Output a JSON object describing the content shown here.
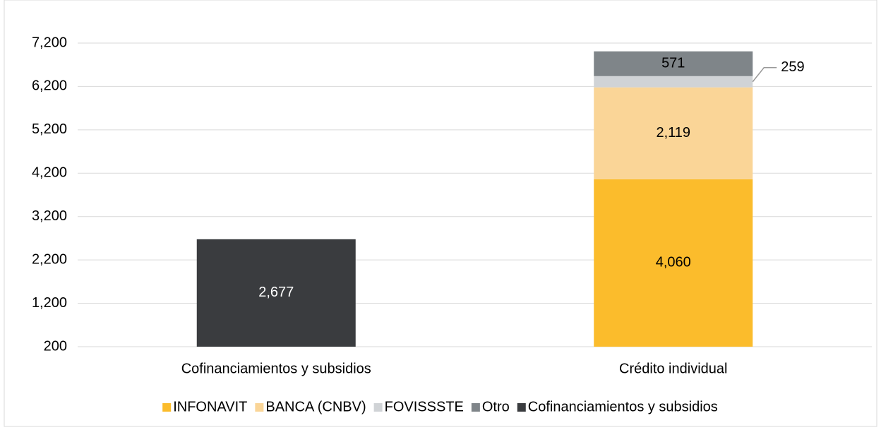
{
  "chart_data": {
    "type": "stacked_bar",
    "categories": [
      "Cofinanciamientos y subsidios",
      "Crédito individual"
    ],
    "series": [
      {
        "name": "INFONAVIT",
        "color": "#fbbc2c",
        "values": [
          null,
          4060
        ],
        "value_labels": [
          null,
          "4,060"
        ]
      },
      {
        "name": "BANCA (CNBV)",
        "color": "#fad597",
        "values": [
          null,
          2119
        ],
        "value_labels": [
          null,
          "2,119"
        ]
      },
      {
        "name": "FOVISSSTE",
        "color": "#d0d3d6",
        "values": [
          null,
          259
        ],
        "value_labels": [
          null,
          "259"
        ]
      },
      {
        "name": "Otro",
        "color": "#7f8589",
        "values": [
          null,
          571
        ],
        "value_labels": [
          null,
          "571"
        ]
      },
      {
        "name": "Cofinanciamientos y subsidios",
        "color": "#3a3c3f",
        "values": [
          2677,
          null
        ],
        "value_labels": [
          "2,677",
          null
        ]
      }
    ],
    "ylim": [
      200,
      7200
    ],
    "yticks": [
      {
        "value": 200,
        "label": "200"
      },
      {
        "value": 1200,
        "label": "1,200"
      },
      {
        "value": 2200,
        "label": "2,200"
      },
      {
        "value": 3200,
        "label": "3,200"
      },
      {
        "value": 4200,
        "label": "4,200"
      },
      {
        "value": 5200,
        "label": "5,200"
      },
      {
        "value": 6200,
        "label": "6,200"
      },
      {
        "value": 7200,
        "label": "7,200"
      }
    ],
    "grid": true,
    "legend": "bottom"
  }
}
